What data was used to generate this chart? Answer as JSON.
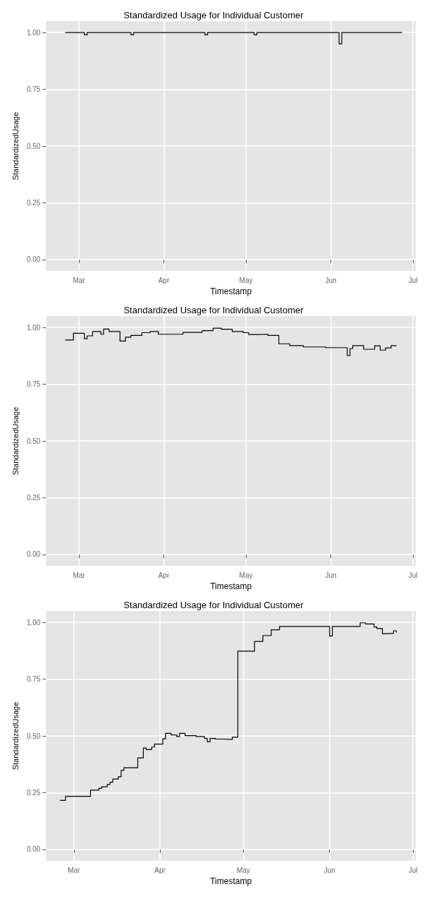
{
  "chart_data": [
    {
      "type": "step",
      "title": "Standardized Usage for Individual Customer",
      "xlabel": "Timestamp",
      "ylabel": "StandardizedUsage",
      "grid": true,
      "marker": "none",
      "line_style": "solid",
      "xlim": [
        "--02-17",
        "--07-02"
      ],
      "ylim": [
        -0.05,
        1.05
      ],
      "xticks": [
        {
          "value": "--03-01",
          "label": "Mar"
        },
        {
          "value": "--04-01",
          "label": "Apr"
        },
        {
          "value": "--05-01",
          "label": "May"
        },
        {
          "value": "--06-01",
          "label": "Jun"
        },
        {
          "value": "--07-01",
          "label": "Jul"
        }
      ],
      "yticks": [
        {
          "value": 0,
          "label": "0.00"
        },
        {
          "value": 0.25,
          "label": "0.25"
        },
        {
          "value": 0.5,
          "label": "0.50"
        },
        {
          "value": 0.75,
          "label": "0.75"
        },
        {
          "value": 1,
          "label": "1.00"
        }
      ],
      "series": [
        {
          "color": "#000000",
          "x": [
            "--02-24",
            "--03-03",
            "--03-04",
            "--03-20",
            "--03-21",
            "--04-16",
            "--04-17",
            "--05-04",
            "--05-05",
            "--06-03",
            "--06-04",
            "--06-05",
            "--06-27"
          ],
          "values": [
            1.0,
            0.99,
            1.0,
            0.99,
            1.0,
            0.99,
            1.0,
            0.99,
            1.0,
            1.0,
            0.95,
            1.0,
            1.0
          ]
        }
      ]
    },
    {
      "type": "step",
      "title": "Standardized Usage for Individual Customer",
      "xlabel": "Timestamp",
      "ylabel": "StandardizedUsage",
      "grid": true,
      "marker": "none",
      "line_style": "solid",
      "xlim": [
        "--02-17",
        "--07-02"
      ],
      "ylim": [
        -0.05,
        1.05
      ],
      "xticks": [
        {
          "value": "--03-01",
          "label": "Mar"
        },
        {
          "value": "--04-01",
          "label": "Apr"
        },
        {
          "value": "--05-01",
          "label": "May"
        },
        {
          "value": "--06-01",
          "label": "Jun"
        },
        {
          "value": "--07-01",
          "label": "Jul"
        }
      ],
      "yticks": [
        {
          "value": 0,
          "label": "0.00"
        },
        {
          "value": 0.25,
          "label": "0.25"
        },
        {
          "value": 0.5,
          "label": "0.50"
        },
        {
          "value": 0.75,
          "label": "0.75"
        },
        {
          "value": 1,
          "label": "1.00"
        }
      ],
      "series": [
        {
          "color": "#000000",
          "x": [
            "--02-24",
            "--02-27",
            "--03-03",
            "--03-04",
            "--03-06",
            "--03-09",
            "--03-10",
            "--03-12",
            "--03-16",
            "--03-18",
            "--03-20",
            "--03-24",
            "--03-27",
            "--03-30",
            "--04-06",
            "--04-08",
            "--04-15",
            "--04-19",
            "--04-22",
            "--04-26",
            "--04-30",
            "--05-02",
            "--05-05",
            "--05-09",
            "--05-13",
            "--05-17",
            "--05-22",
            "--05-30",
            "--06-03",
            "--06-07",
            "--06-08",
            "--06-09",
            "--06-13",
            "--06-17",
            "--06-19",
            "--06-21",
            "--06-23",
            "--06-25"
          ],
          "values": [
            0.945,
            0.974,
            0.95,
            0.963,
            0.982,
            0.97,
            0.993,
            0.982,
            0.94,
            0.957,
            0.965,
            0.977,
            0.982,
            0.97,
            0.97,
            0.978,
            0.986,
            0.997,
            0.992,
            0.982,
            0.977,
            0.969,
            0.97,
            0.965,
            0.928,
            0.92,
            0.914,
            0.911,
            0.911,
            0.876,
            0.907,
            0.92,
            0.904,
            0.919,
            0.9,
            0.91,
            0.92,
            0.92
          ]
        }
      ]
    },
    {
      "type": "step",
      "title": "Standardized Usage for Individual Customer",
      "xlabel": "Timestamp",
      "ylabel": "StandardizedUsage",
      "grid": true,
      "marker": "none",
      "line_style": "solid",
      "xlim": [
        "--02-19",
        "--07-02"
      ],
      "ylim": [
        -0.05,
        1.05
      ],
      "xticks": [
        {
          "value": "--03-01",
          "label": "Mar"
        },
        {
          "value": "--04-01",
          "label": "Apr"
        },
        {
          "value": "--05-01",
          "label": "May"
        },
        {
          "value": "--06-01",
          "label": "Jun"
        },
        {
          "value": "--07-01",
          "label": "Jul"
        }
      ],
      "yticks": [
        {
          "value": 0,
          "label": "0.00"
        },
        {
          "value": 0.25,
          "label": "0.25"
        },
        {
          "value": 0.5,
          "label": "0.50"
        },
        {
          "value": 0.75,
          "label": "0.75"
        },
        {
          "value": 1,
          "label": "1.00"
        }
      ],
      "series": [
        {
          "color": "#000000",
          "x": [
            "--02-24",
            "--02-26",
            "--03-07",
            "--03-10",
            "--03-11",
            "--03-13",
            "--03-14",
            "--03-15",
            "--03-17",
            "--03-18",
            "--03-19",
            "--03-24",
            "--03-26",
            "--03-27",
            "--03-29",
            "--03-30",
            "--04-02",
            "--04-03",
            "--04-05",
            "--04-07",
            "--04-08",
            "--04-10",
            "--04-14",
            "--04-17",
            "--04-18",
            "--04-19",
            "--04-21",
            "--04-24",
            "--04-27",
            "--04-29",
            "--05-05",
            "--05-08",
            "--05-11",
            "--05-14",
            "--06-01",
            "--06-02",
            "--06-03",
            "--06-12",
            "--06-14",
            "--06-17",
            "--06-18",
            "--06-20",
            "--06-22",
            "--06-24",
            "--06-25"
          ],
          "values": [
            0.216,
            0.234,
            0.261,
            0.269,
            0.276,
            0.286,
            0.296,
            0.31,
            0.32,
            0.348,
            0.36,
            0.403,
            0.447,
            0.44,
            0.451,
            0.464,
            0.487,
            0.511,
            0.504,
            0.497,
            0.511,
            0.501,
            0.497,
            0.489,
            0.474,
            0.489,
            0.486,
            0.484,
            0.494,
            0.873,
            0.916,
            0.942,
            0.967,
            0.982,
            0.94,
            0.982,
            0.982,
            0.998,
            0.993,
            0.98,
            0.973,
            0.95,
            0.952,
            0.963,
            0.955
          ]
        }
      ]
    }
  ]
}
